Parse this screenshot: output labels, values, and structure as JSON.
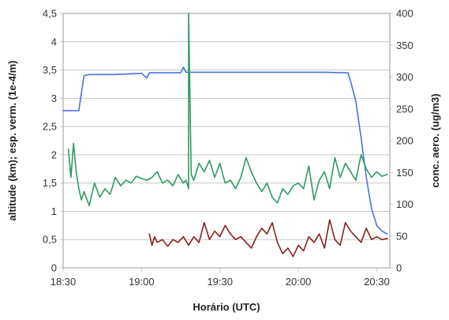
{
  "chart_data": {
    "type": "line",
    "title": "",
    "xlabel": "Horário (UTC)",
    "ylabel_left": "altitude (km); esp. verm. (1e-4/m)",
    "ylabel_right": "conc. aero. (ug/m3)",
    "xlim": [
      "18:30",
      "20:35"
    ],
    "ylim_left": [
      0,
      4.5
    ],
    "ylim_right": [
      0,
      400
    ],
    "grid": true,
    "legend": "none",
    "x_ticks": [
      "18:30",
      "19:00",
      "19:30",
      "20:00",
      "20:30"
    ],
    "y_left_ticks": [
      "0",
      "0,5",
      "1",
      "1,5",
      "2",
      "2,5",
      "3",
      "3,5",
      "4",
      "4,5"
    ],
    "y_right_ticks": [
      "0",
      "50",
      "100",
      "150",
      "200",
      "250",
      "300",
      "350",
      "400"
    ],
    "series": [
      {
        "axis": "left",
        "color": "#4a72e0",
        "x": [
          "18:30",
          "18:35",
          "18:36",
          "18:37",
          "18:38",
          "18:40",
          "18:50",
          "19:00",
          "19:02",
          "19:03",
          "19:10",
          "19:15",
          "19:16",
          "19:17",
          "19:20",
          "19:30",
          "19:40",
          "19:50",
          "20:00",
          "20:10",
          "20:17",
          "20:19",
          "20:20",
          "20:22",
          "20:24",
          "20:26",
          "20:28",
          "20:30",
          "20:32",
          "20:34"
        ],
        "y": [
          2.78,
          2.78,
          2.78,
          3.1,
          3.4,
          3.42,
          3.42,
          3.44,
          3.36,
          3.45,
          3.45,
          3.45,
          3.55,
          3.46,
          3.46,
          3.46,
          3.46,
          3.46,
          3.46,
          3.46,
          3.45,
          3.45,
          3.3,
          2.95,
          2.3,
          1.6,
          1.05,
          0.75,
          0.65,
          0.6
        ]
      },
      {
        "axis": "left",
        "color": "#2e9a64",
        "x": [
          "18:32",
          "18:33",
          "18:34",
          "18:35",
          "18:36",
          "18:37",
          "18:38",
          "18:40",
          "18:42",
          "18:44",
          "18:46",
          "18:48",
          "18:50",
          "18:52",
          "18:54",
          "18:56",
          "18:58",
          "19:00",
          "19:02",
          "19:04",
          "19:06",
          "19:08",
          "19:10",
          "19:12",
          "19:14",
          "19:16",
          "19:17",
          "19:18",
          "19:18",
          "19:19",
          "19:20",
          "19:22",
          "19:24",
          "19:26",
          "19:28",
          "19:30",
          "19:32",
          "19:34",
          "19:36",
          "19:38",
          "19:40",
          "19:42",
          "19:44",
          "19:46",
          "19:48",
          "19:50",
          "19:52",
          "19:54",
          "19:56",
          "19:58",
          "20:00",
          "20:02",
          "20:04",
          "20:06",
          "20:08",
          "20:10",
          "20:12",
          "20:14",
          "20:16",
          "20:18",
          "20:20",
          "20:22",
          "20:24",
          "20:26",
          "20:28",
          "20:30",
          "20:32",
          "20:34"
        ],
        "y": [
          2.1,
          1.6,
          2.2,
          1.7,
          1.4,
          1.2,
          1.35,
          1.1,
          1.5,
          1.25,
          1.4,
          1.3,
          1.6,
          1.45,
          1.55,
          1.5,
          1.62,
          1.58,
          1.55,
          1.6,
          1.7,
          1.5,
          1.55,
          1.45,
          1.65,
          1.5,
          1.55,
          1.4,
          4.5,
          1.65,
          1.55,
          1.85,
          1.7,
          1.9,
          1.6,
          1.85,
          1.5,
          1.55,
          1.4,
          1.6,
          1.95,
          1.7,
          1.5,
          1.35,
          1.5,
          1.25,
          1.15,
          1.4,
          1.3,
          1.45,
          1.5,
          1.4,
          1.8,
          1.2,
          1.55,
          1.7,
          1.4,
          1.95,
          1.6,
          1.85,
          1.7,
          1.55,
          2.0,
          1.75,
          1.6,
          1.7,
          1.62,
          1.65
        ]
      },
      {
        "axis": "left",
        "color": "#8a2020",
        "x": [
          "19:03",
          "19:04",
          "19:05",
          "19:06",
          "19:08",
          "19:10",
          "19:12",
          "19:14",
          "19:16",
          "19:18",
          "19:20",
          "19:22",
          "19:24",
          "19:26",
          "19:28",
          "19:30",
          "19:32",
          "19:34",
          "19:36",
          "19:38",
          "19:40",
          "19:42",
          "19:44",
          "19:46",
          "19:48",
          "19:50",
          "19:52",
          "19:54",
          "19:56",
          "19:58",
          "20:00",
          "20:02",
          "20:04",
          "20:06",
          "20:08",
          "20:10",
          "20:12",
          "20:14",
          "20:16",
          "20:18",
          "20:20",
          "20:22",
          "20:24",
          "20:26",
          "20:28",
          "20:30",
          "20:32",
          "20:34"
        ],
        "y": [
          0.6,
          0.4,
          0.55,
          0.45,
          0.5,
          0.38,
          0.5,
          0.45,
          0.55,
          0.4,
          0.55,
          0.45,
          0.8,
          0.5,
          0.65,
          0.55,
          0.75,
          0.6,
          0.5,
          0.55,
          0.45,
          0.35,
          0.55,
          0.7,
          0.6,
          0.8,
          0.45,
          0.25,
          0.35,
          0.2,
          0.4,
          0.3,
          0.55,
          0.45,
          0.6,
          0.35,
          0.85,
          0.5,
          0.4,
          0.8,
          0.65,
          0.55,
          0.45,
          0.7,
          0.5,
          0.55,
          0.5,
          0.52
        ]
      }
    ]
  }
}
